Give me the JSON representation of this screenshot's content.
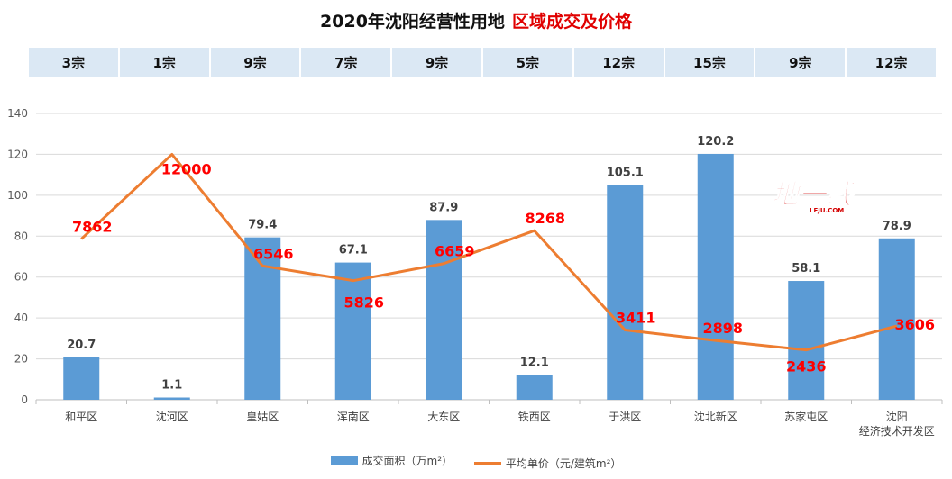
{
  "title": {
    "main": "2020年沈阳经营性用地",
    "highlight": "区域成交及价格"
  },
  "counts": [
    "3宗",
    "1宗",
    "9宗",
    "7宗",
    "9宗",
    "5宗",
    "12宗",
    "15宗",
    "9宗",
    "12宗"
  ],
  "logo": {
    "text": "地一线",
    "subtext": "LEJU.COM",
    "colors": {
      "primary": "#d40000",
      "outline": "#ffffff"
    }
  },
  "colors": {
    "bar": "#5b9bd5",
    "line": "#ed7d31",
    "price_label": "#ff0000",
    "count_bg": "#dbe8f4",
    "grid": "#d9d9d9",
    "title_highlight": "#e00000"
  },
  "chart_data": {
    "type": "bar",
    "categories": [
      "和平区",
      "沈河区",
      "皇姑区",
      "浑南区",
      "大东区",
      "铁西区",
      "于洪区",
      "沈北新区",
      "苏家屯区",
      "沈阳\n经济技术开发区"
    ],
    "series": [
      {
        "name": "成交面积（万m²）",
        "type": "bar",
        "values": [
          20.7,
          1.1,
          79.4,
          67.1,
          87.9,
          12.1,
          105.1,
          120.2,
          58.1,
          78.9
        ],
        "labels": [
          "20.7",
          "1.1",
          "79.4",
          "67.1",
          "87.9",
          "12.1",
          "105.1",
          "120.2",
          "58.1",
          "78.9"
        ]
      },
      {
        "name": "平均单价（元/建筑m²）",
        "type": "line",
        "values": [
          7862,
          12000,
          6546,
          5826,
          6659,
          8268,
          3411,
          2898,
          2436,
          3606
        ],
        "labels": [
          "7862",
          "12000",
          "6546",
          "5826",
          "6659",
          "8268",
          "3411",
          "2898",
          "2436",
          "3606"
        ]
      }
    ],
    "y_ticks": [
      "0",
      "20",
      "40",
      "60",
      "80",
      "100",
      "120",
      "140"
    ],
    "ylim": [
      0,
      140
    ],
    "line_scale": "price/100 on the same axis",
    "grid": true,
    "legend_position": "bottom"
  }
}
